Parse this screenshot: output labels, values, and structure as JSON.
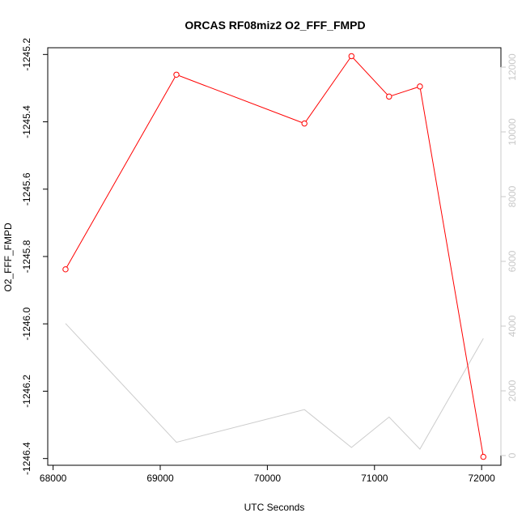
{
  "chart_data": {
    "type": "line",
    "title": "ORCAS RF08miz2 O2_FFF_FMPD",
    "xlabel": "UTC Seconds",
    "ylabel": "O2_FFF_FMPD",
    "xlim": [
      67950,
      72180
    ],
    "ylim": [
      -1246.42,
      -1245.18
    ],
    "y2lim": [
      -300,
      12600
    ],
    "x_ticks": [
      68000,
      69000,
      70000,
      71000,
      72000
    ],
    "x_tick_labels": [
      "68000",
      "69000",
      "70000",
      "71000",
      "72000"
    ],
    "y_ticks": [
      -1246.4,
      -1246.2,
      -1246.0,
      -1245.8,
      -1245.6,
      -1245.4,
      -1245.2
    ],
    "y_tick_labels": [
      "-1246.4",
      "-1246.2",
      "-1246.0",
      "-1245.8",
      "-1245.6",
      "-1245.4",
      "-1245.2"
    ],
    "y2_ticks": [
      0,
      2000,
      4000,
      6000,
      8000,
      10000,
      12000
    ],
    "y2_tick_labels": [
      "0",
      "2000",
      "4000",
      "6000",
      "8000",
      "10000",
      "12000"
    ],
    "grid": false,
    "legend": "none",
    "series": [
      {
        "axis": "left",
        "color": "#ff0000",
        "marker": "open-circle",
        "x": [
          68116,
          69151,
          70346,
          70785,
          71136,
          71424,
          72016
        ],
        "y": [
          -1245.838,
          -1245.26,
          -1245.405,
          -1245.205,
          -1245.325,
          -1245.295,
          -1246.395
        ]
      },
      {
        "axis": "right",
        "color": "#cccccc",
        "marker": "none",
        "x": [
          68116,
          69151,
          70346,
          70785,
          71136,
          71424,
          72016
        ],
        "y": [
          4080,
          410,
          1420,
          250,
          1190,
          200,
          3620
        ]
      }
    ],
    "colors": {
      "axis": "#000000",
      "right_axis": "#c8c8c8",
      "background": "#ffffff"
    }
  }
}
